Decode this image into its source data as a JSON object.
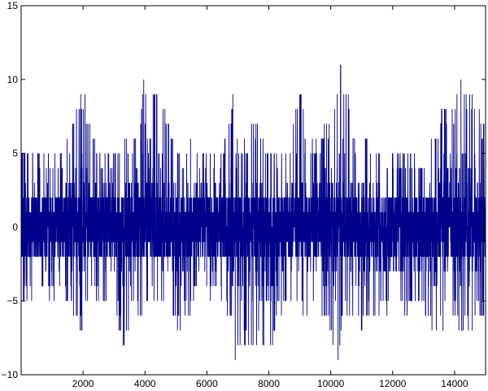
{
  "chart_data": {
    "type": "line",
    "title": "",
    "xlabel": "",
    "ylabel": "",
    "xlim": [
      0,
      15000
    ],
    "ylim": [
      -10,
      15
    ],
    "grid": false,
    "legend": "none",
    "x_ticks": [
      2000,
      4000,
      6000,
      8000,
      10000,
      12000,
      14000
    ],
    "x_tick_labels": [
      "2000",
      "4000",
      "6000",
      "8000",
      "10000",
      "12000",
      "14000"
    ],
    "y_ticks": [
      -10,
      -5,
      0,
      5,
      10,
      15
    ],
    "y_tick_labels": [
      "−10",
      "−5",
      "0",
      "5",
      "10",
      "15"
    ],
    "series": [
      {
        "color": "#00008b",
        "n_points": 15000,
        "description": "integer-valued noise centered on 0, mostly within -2..2, with bursts of larger amplitude",
        "envelope": {
          "x": [
            0,
            500,
            1000,
            1500,
            1900,
            2000,
            2200,
            2600,
            3000,
            3300,
            3600,
            3900,
            4000,
            4100,
            4400,
            4800,
            5200,
            5600,
            6000,
            6400,
            6800,
            6900,
            7000,
            7200,
            7500,
            7700,
            8000,
            8400,
            8800,
            9000,
            9200,
            9600,
            10000,
            10200,
            10300,
            10500,
            10800,
            11000,
            11400,
            11800,
            12200,
            12600,
            13000,
            13400,
            13600,
            13800,
            14000,
            14200,
            14600,
            15000
          ],
          "max": [
            6,
            5,
            5,
            6,
            9,
            9,
            8,
            5,
            5,
            6,
            6,
            9,
            11,
            9,
            10,
            7,
            5,
            6,
            5,
            5,
            8,
            11,
            6,
            6,
            7,
            7,
            6,
            5,
            7,
            10,
            6,
            6,
            8,
            10,
            12,
            10,
            6,
            7,
            6,
            5,
            5,
            5,
            5,
            7,
            8,
            9,
            8,
            10,
            9,
            7
          ],
          "min": [
            -6,
            -4,
            -5,
            -5,
            -8,
            -6,
            -5,
            -5,
            -5,
            -9,
            -6,
            -6,
            -7,
            -5,
            -6,
            -6,
            -7,
            -5,
            -5,
            -5,
            -7,
            -10,
            -9,
            -8,
            -9,
            -8,
            -9,
            -6,
            -6,
            -6,
            -6,
            -6,
            -8,
            -9,
            -8,
            -6,
            -7,
            -7,
            -6,
            -6,
            -6,
            -6,
            -6,
            -8,
            -7,
            -6,
            -6,
            -8,
            -7,
            -6
          ]
        }
      }
    ]
  }
}
